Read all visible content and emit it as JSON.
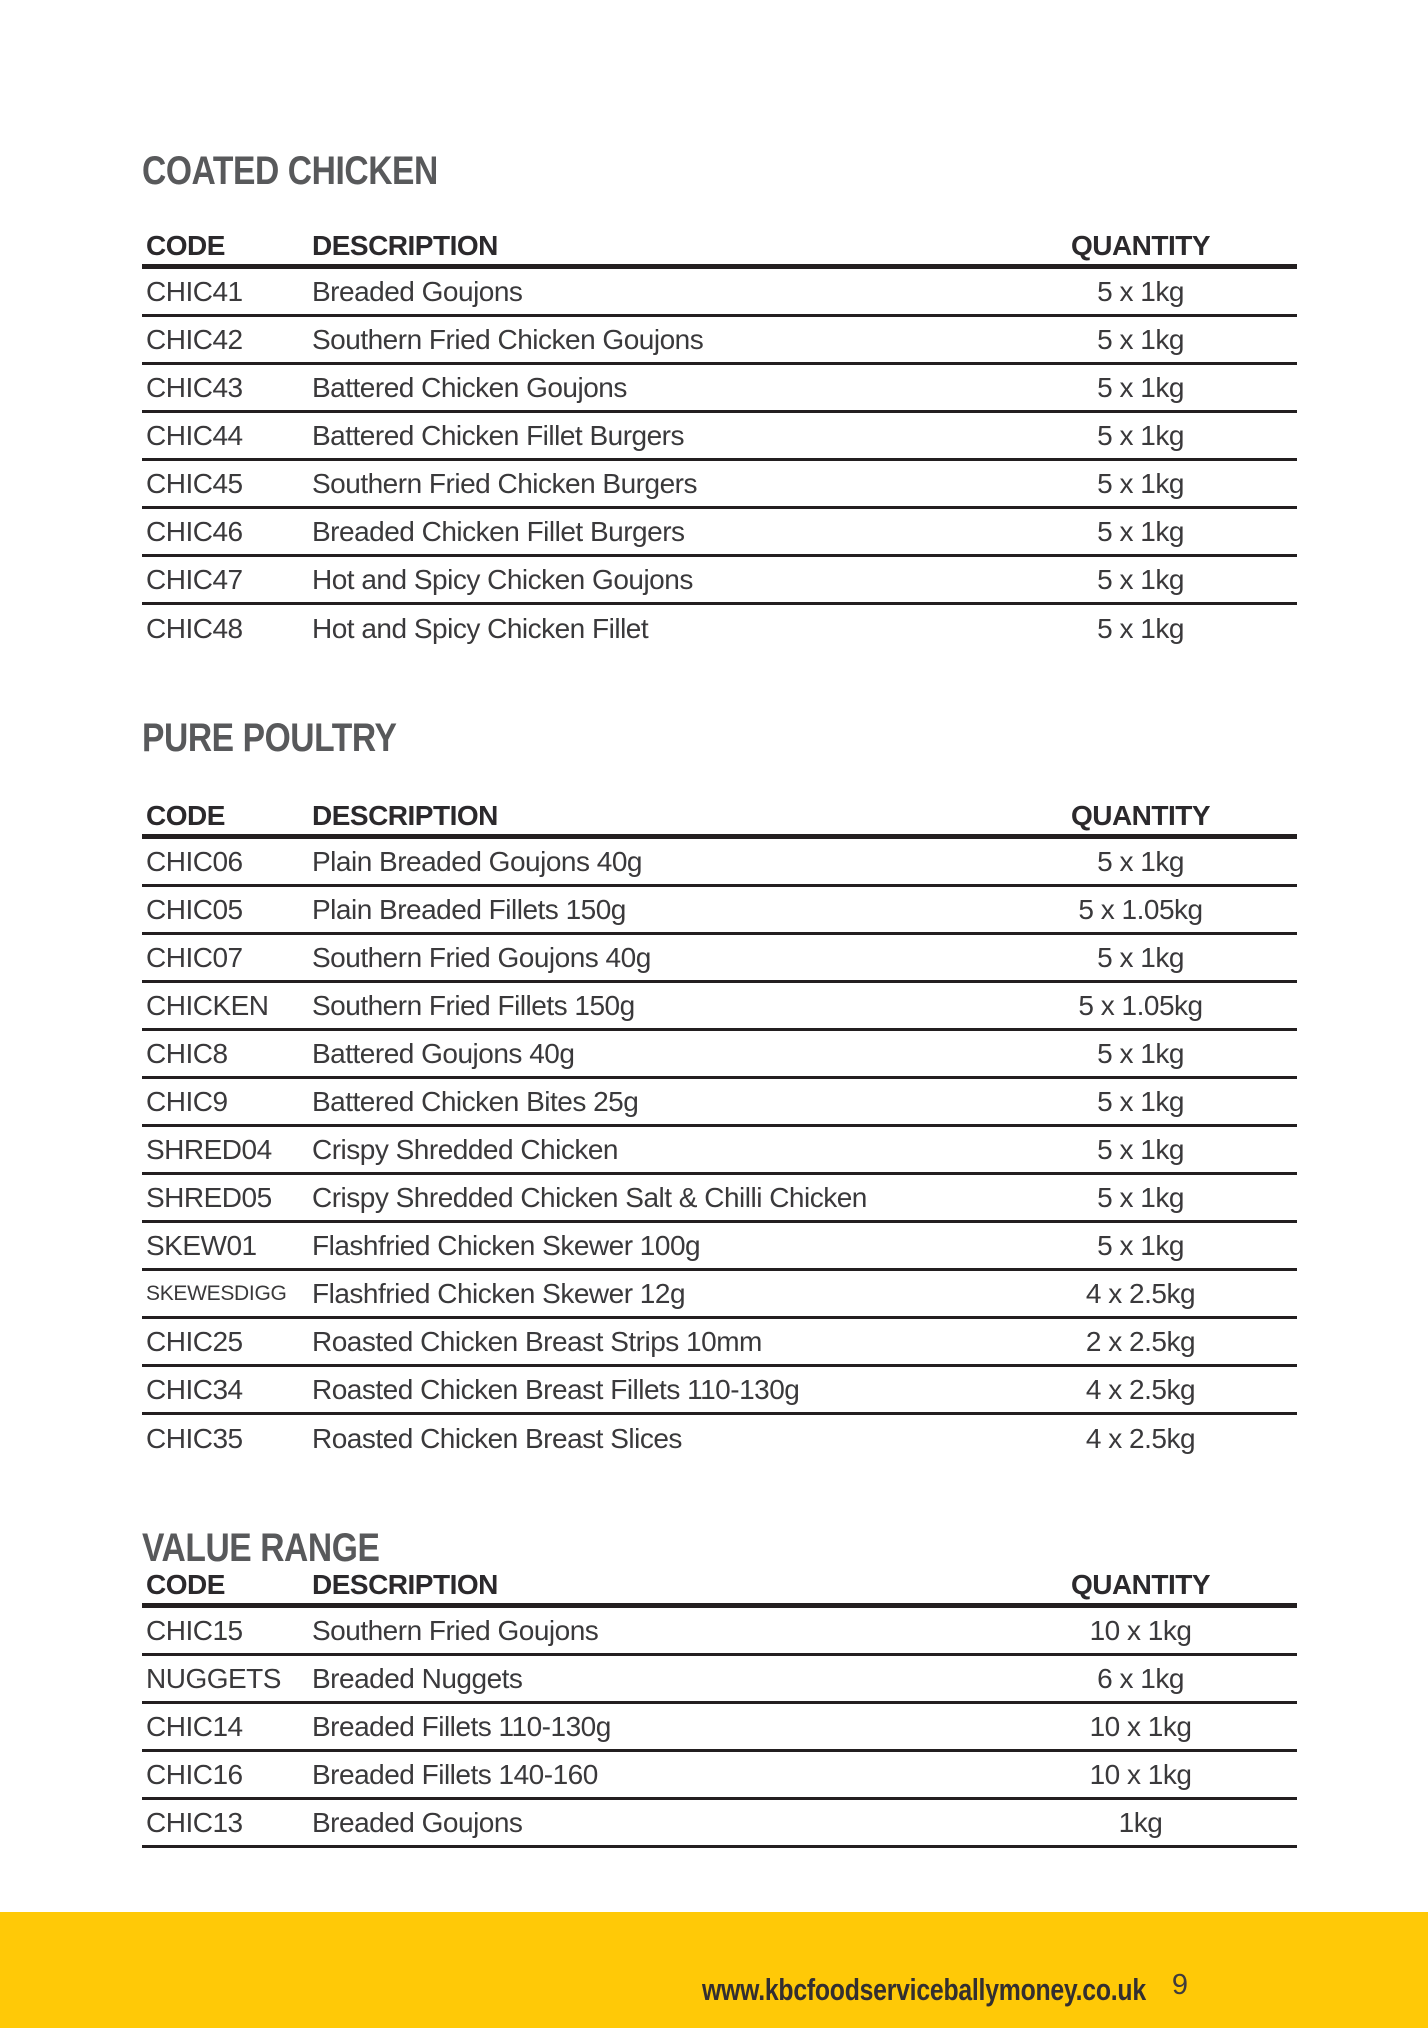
{
  "colors": {
    "accent_yellow": "#FFC907",
    "heading_gray": "#58595B",
    "line_black": "#231F20"
  },
  "columns": {
    "code": "CODE",
    "description": "DESCRIPTION",
    "quantity": "QUANTITY"
  },
  "sections": [
    {
      "title": "COATED CHICKEN",
      "rows": [
        {
          "code": "CHIC41",
          "description": "Breaded Goujons",
          "quantity": "5 x 1kg"
        },
        {
          "code": "CHIC42",
          "description": "Southern Fried Chicken Goujons",
          "quantity": "5 x 1kg"
        },
        {
          "code": "CHIC43",
          "description": "Battered Chicken Goujons",
          "quantity": "5 x 1kg"
        },
        {
          "code": "CHIC44",
          "description": "Battered Chicken Fillet Burgers",
          "quantity": "5 x 1kg"
        },
        {
          "code": "CHIC45",
          "description": "Southern Fried Chicken Burgers",
          "quantity": "5 x 1kg"
        },
        {
          "code": "CHIC46",
          "description": "Breaded Chicken Fillet Burgers",
          "quantity": "5 x 1kg"
        },
        {
          "code": "CHIC47",
          "description": "Hot and Spicy Chicken Goujons",
          "quantity": "5 x 1kg"
        },
        {
          "code": "CHIC48",
          "description": "Hot and Spicy Chicken Fillet",
          "quantity": "5 x 1kg"
        }
      ]
    },
    {
      "title": "PURE POULTRY",
      "rows": [
        {
          "code": "CHIC06",
          "description": "Plain Breaded Goujons 40g",
          "quantity": "5 x 1kg"
        },
        {
          "code": "CHIC05",
          "description": "Plain Breaded Fillets 150g",
          "quantity": "5 x 1.05kg"
        },
        {
          "code": "CHIC07",
          "description": "Southern Fried Goujons 40g",
          "quantity": "5 x 1kg"
        },
        {
          "code": "CHICKEN",
          "description": "Southern Fried Fillets 150g",
          "quantity": "5 x 1.05kg"
        },
        {
          "code": "CHIC8",
          "description": "Battered Goujons 40g",
          "quantity": "5 x 1kg"
        },
        {
          "code": "CHIC9",
          "description": "Battered Chicken Bites 25g",
          "quantity": "5 x 1kg"
        },
        {
          "code": "SHRED04",
          "description": "Crispy Shredded Chicken",
          "quantity": "5 x 1kg"
        },
        {
          "code": "SHRED05",
          "description": "Crispy Shredded Chicken Salt & Chilli Chicken",
          "quantity": "5 x 1kg"
        },
        {
          "code": "SKEW01",
          "description": "Flashfried Chicken Skewer 100g",
          "quantity": "5 x 1kg"
        },
        {
          "code": "SKEWESDIGG",
          "description": "Flashfried Chicken Skewer 12g",
          "quantity": "4 x 2.5kg"
        },
        {
          "code": "CHIC25",
          "description": "Roasted Chicken Breast Strips 10mm",
          "quantity": "2 x 2.5kg"
        },
        {
          "code": "CHIC34",
          "description": "Roasted Chicken Breast Fillets 110-130g",
          "quantity": "4 x 2.5kg"
        },
        {
          "code": "CHIC35",
          "description": "Roasted Chicken Breast Slices",
          "quantity": "4 x 2.5kg"
        }
      ]
    },
    {
      "title": "VALUE RANGE",
      "rows": [
        {
          "code": "CHIC15",
          "description": "Southern Fried Goujons",
          "quantity": "10 x 1kg"
        },
        {
          "code": "NUGGETS",
          "description": "Breaded Nuggets",
          "quantity": "6 x 1kg"
        },
        {
          "code": "CHIC14",
          "description": "Breaded Fillets 110-130g",
          "quantity": "10 x 1kg"
        },
        {
          "code": "CHIC16",
          "description": "Breaded Fillets 140-160",
          "quantity": "10 x 1kg"
        },
        {
          "code": "CHIC13",
          "description": "Breaded Goujons",
          "quantity": "1kg"
        }
      ]
    }
  ],
  "footer": {
    "url": "www.kbcfoodserviceballymoney.co.uk",
    "page_number": "9"
  }
}
